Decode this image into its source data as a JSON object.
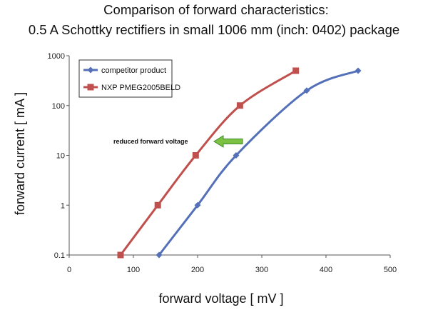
{
  "chart_data": {
    "type": "line",
    "title_lines": [
      "Comparison of forward characteristics:",
      "0.5 A Schottky rectifiers in small 1006 mm (inch: 0402) package"
    ],
    "xlabel": "forward voltage [ mV ]",
    "ylabel": "forward current [ mA ]",
    "xlim": [
      0,
      500
    ],
    "ylim": [
      0.1,
      1000
    ],
    "y_scale": "log",
    "x_ticks": [
      "0",
      "100",
      "200",
      "300",
      "400",
      "500"
    ],
    "y_ticks": [
      "0.1",
      "1",
      "10",
      "100",
      "1000"
    ],
    "grid": false,
    "legend_position": "top-left",
    "series": [
      {
        "name": "competitor product",
        "color": "#5470b8",
        "marker": "diamond",
        "points": [
          [
            140,
            0.1
          ],
          [
            200,
            1
          ],
          [
            260,
            10
          ],
          [
            370,
            200
          ],
          [
            450,
            500
          ]
        ]
      },
      {
        "name": "NXP PMEG2005BELD",
        "color": "#c0504d",
        "marker": "square",
        "points": [
          [
            80,
            0.1
          ],
          [
            138,
            1
          ],
          [
            197,
            10
          ],
          [
            266,
            100
          ],
          [
            353,
            500
          ]
        ]
      }
    ],
    "annotation": {
      "text": "reduced forward voltage",
      "arrow_color": "#7cc142",
      "arrow_direction": "left"
    }
  }
}
